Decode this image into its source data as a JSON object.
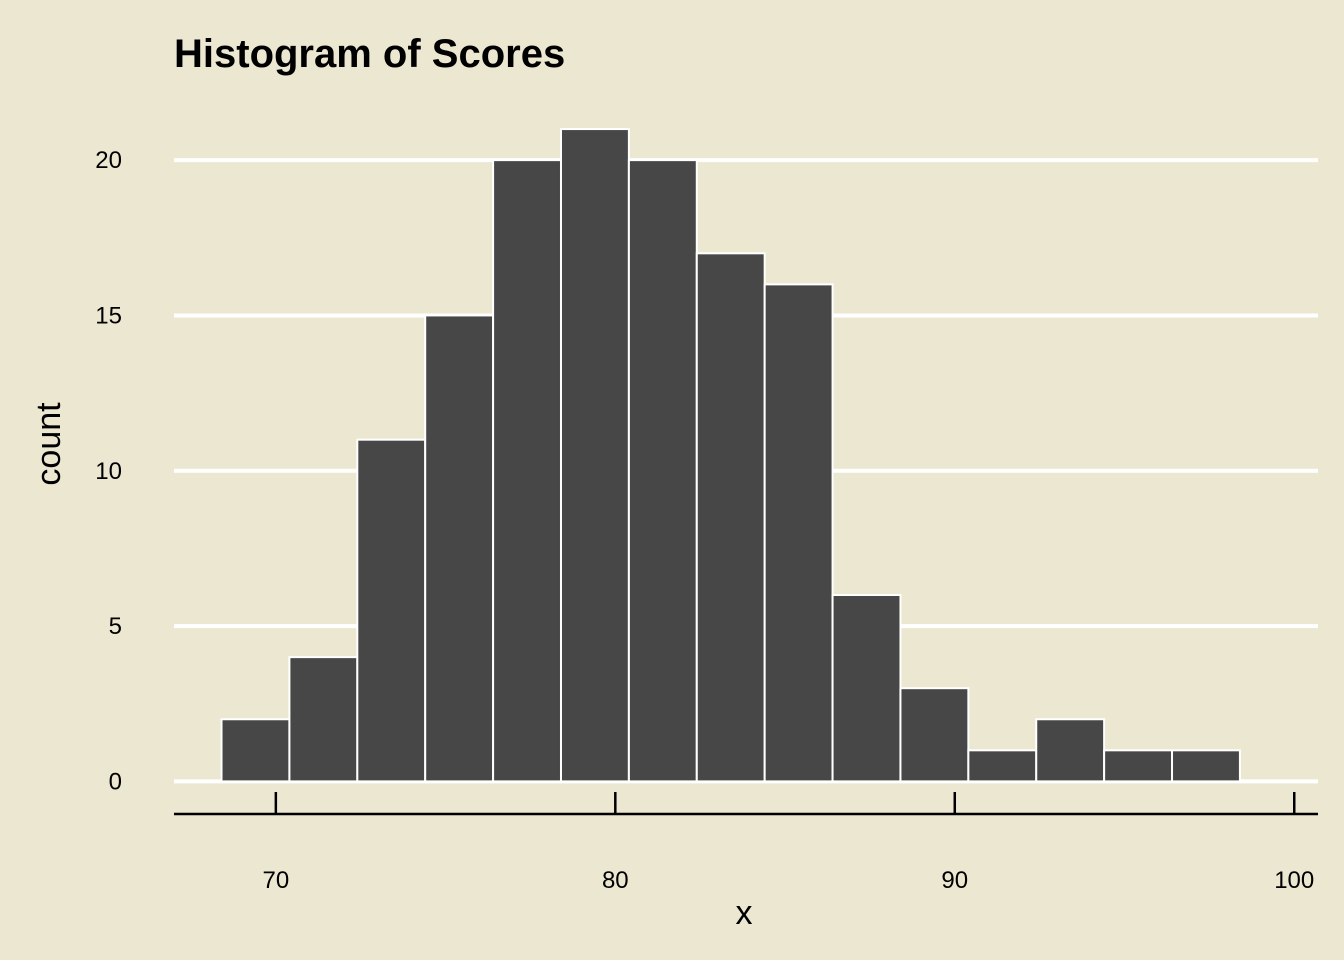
{
  "chart_data": {
    "type": "histogram",
    "title": "Histogram of Scores",
    "xlabel": "x",
    "ylabel": "count",
    "bin_width": 2,
    "bins": [
      {
        "x0": 68.4,
        "x1": 70.4,
        "count": 2
      },
      {
        "x0": 70.4,
        "x1": 72.4,
        "count": 4
      },
      {
        "x0": 72.4,
        "x1": 74.4,
        "count": 11
      },
      {
        "x0": 74.4,
        "x1": 76.4,
        "count": 15
      },
      {
        "x0": 76.4,
        "x1": 78.4,
        "count": 20
      },
      {
        "x0": 78.4,
        "x1": 80.4,
        "count": 21
      },
      {
        "x0": 80.4,
        "x1": 82.4,
        "count": 20
      },
      {
        "x0": 82.4,
        "x1": 84.4,
        "count": 17
      },
      {
        "x0": 84.4,
        "x1": 86.4,
        "count": 16
      },
      {
        "x0": 86.4,
        "x1": 88.4,
        "count": 6
      },
      {
        "x0": 88.4,
        "x1": 90.4,
        "count": 3
      },
      {
        "x0": 90.4,
        "x1": 92.4,
        "count": 1
      },
      {
        "x0": 92.4,
        "x1": 94.4,
        "count": 2
      },
      {
        "x0": 94.4,
        "x1": 96.4,
        "count": 1
      },
      {
        "x0": 96.4,
        "x1": 98.4,
        "count": 1
      }
    ],
    "xlim": [
      67,
      100.7
    ],
    "ylim": [
      -1.05,
      22
    ],
    "x_ticks": [
      "70",
      "80",
      "90",
      "100"
    ],
    "y_ticks": [
      "0",
      "5",
      "10",
      "15",
      "20"
    ],
    "grid": "horizontal",
    "legend": "none",
    "colors": {
      "background": "#ECE7D1",
      "bar_fill": "#474747",
      "bar_outline": "#FFFFFF",
      "grid": "#FFFFFF",
      "axis": "#000000"
    }
  }
}
